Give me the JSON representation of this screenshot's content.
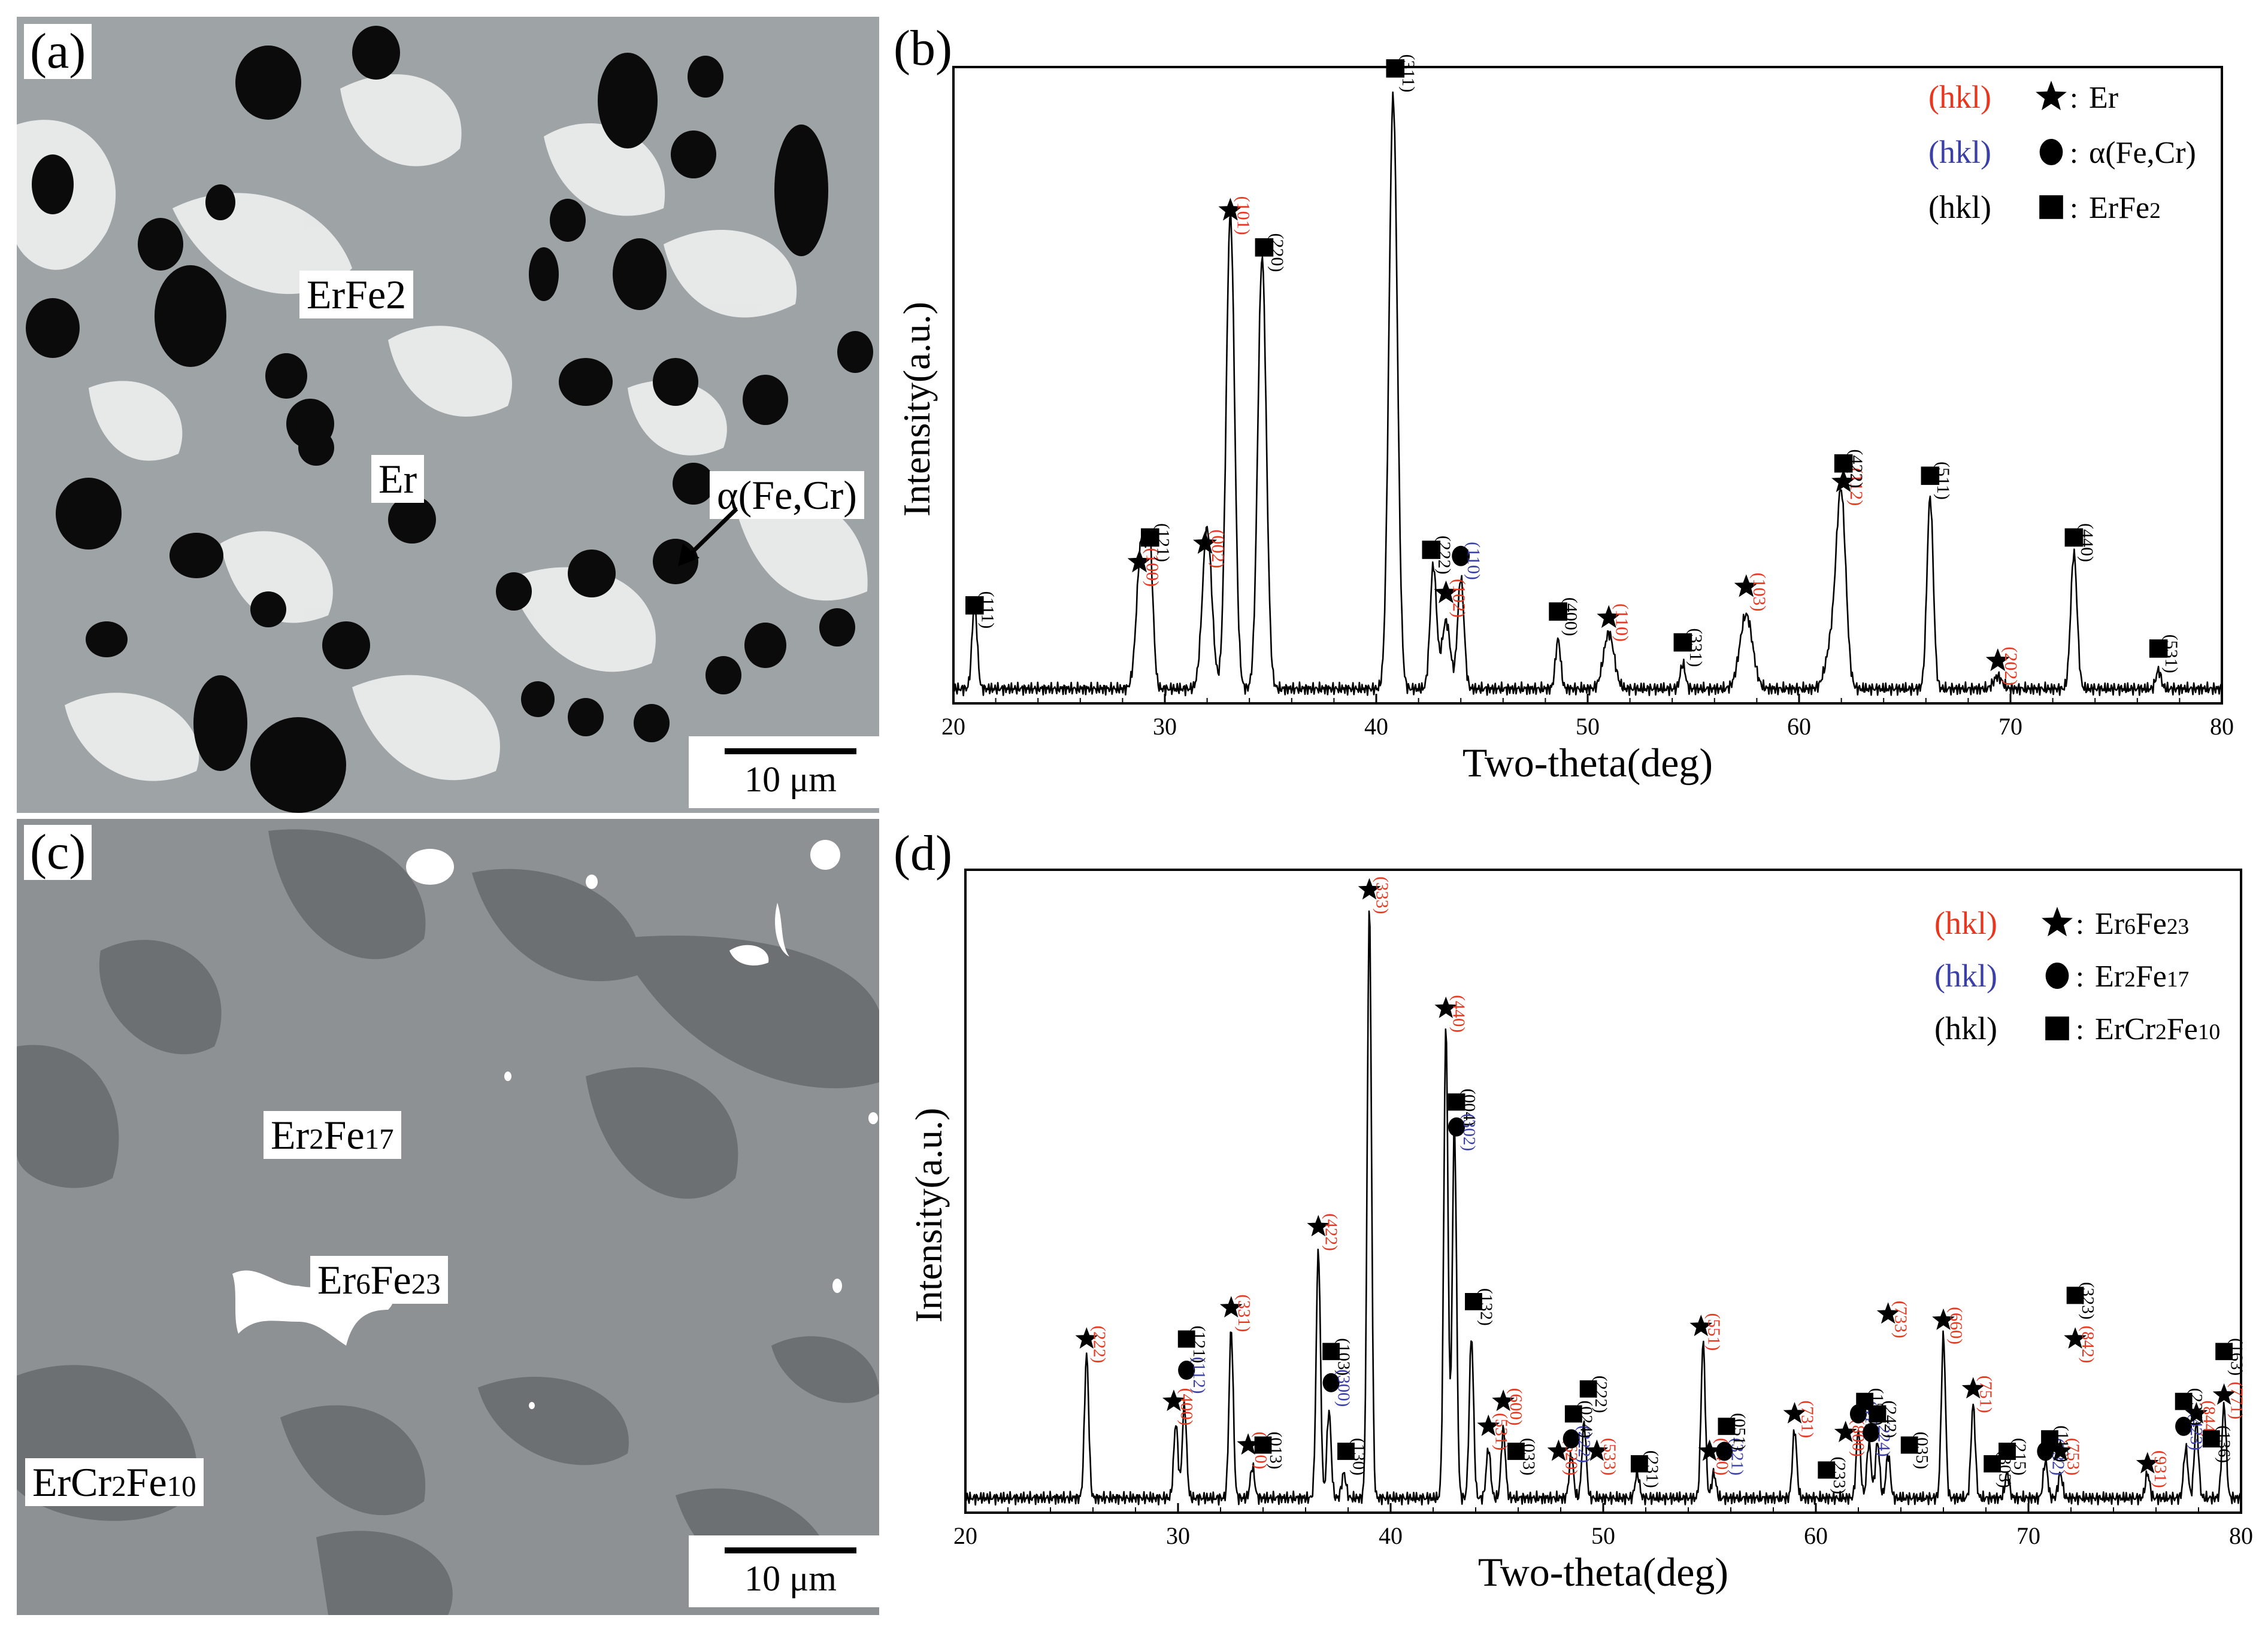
{
  "panels": {
    "a": {
      "label": "(a)",
      "phases": {
        "erfe2": "ErFe2",
        "er": "Er",
        "alpha": "α(Fe,Cr)"
      },
      "scale": "10 μm"
    },
    "c": {
      "label": "(c)",
      "phases": {
        "er2fe17": "Er2Fe17",
        "er6fe23": "Er6Fe23",
        "ercr2fe10": "ErCr2Fe10"
      },
      "scale": "10 μm"
    }
  },
  "colors": {
    "red_label": "#e8361f",
    "blue_label": "#3b3fa8",
    "black_label": "#000000",
    "micro_a_matrix": "#9ea3a6",
    "micro_a_white": "#eef0f0",
    "micro_c_matrix": "#8d9193",
    "micro_c_dark": "#6c7072"
  },
  "chart_data": [
    {
      "panel_label": "(b)",
      "type": "line",
      "xlabel": "Two-theta(deg)",
      "ylabel": "Intensity(a.u.)",
      "xlim": [
        20,
        80
      ],
      "ylim": [
        0,
        100
      ],
      "xticks": [
        20,
        30,
        40,
        50,
        60,
        70,
        80
      ],
      "legend": {
        "placement": "top-right",
        "entries": [
          {
            "hkl": "(hkl)",
            "color": "red",
            "marker": "star",
            "phase": "Er"
          },
          {
            "hkl": "(hkl)",
            "color": "blue",
            "marker": "circle",
            "phase": "α(Fe,Cr)"
          },
          {
            "hkl": "(hkl)",
            "color": "black",
            "marker": "square",
            "phase": "ErFe2"
          }
        ]
      },
      "peaks": [
        {
          "x": 21.0,
          "y": 14,
          "w": 0.12
        },
        {
          "x": 28.9,
          "y": 24,
          "w": 0.22
        },
        {
          "x": 29.3,
          "y": 20,
          "w": 0.15
        },
        {
          "x": 32.0,
          "y": 26,
          "w": 0.22
        },
        {
          "x": 33.1,
          "y": 77,
          "w": 0.2
        },
        {
          "x": 34.6,
          "y": 70,
          "w": 0.2
        },
        {
          "x": 40.8,
          "y": 96,
          "w": 0.2
        },
        {
          "x": 42.7,
          "y": 20,
          "w": 0.15
        },
        {
          "x": 43.3,
          "y": 11,
          "w": 0.2
        },
        {
          "x": 44.0,
          "y": 18,
          "w": 0.15
        },
        {
          "x": 48.6,
          "y": 8,
          "w": 0.12
        },
        {
          "x": 51.0,
          "y": 9,
          "w": 0.25
        },
        {
          "x": 54.5,
          "y": 4,
          "w": 0.12
        },
        {
          "x": 57.5,
          "y": 12,
          "w": 0.3
        },
        {
          "x": 62.0,
          "y": 29,
          "w": 0.22
        },
        {
          "x": 61.6,
          "y": 8,
          "w": 0.3
        },
        {
          "x": 66.2,
          "y": 31,
          "w": 0.15
        },
        {
          "x": 69.4,
          "y": 2,
          "w": 0.2
        },
        {
          "x": 73.0,
          "y": 22,
          "w": 0.15
        },
        {
          "x": 77.0,
          "y": 3,
          "w": 0.12
        }
      ],
      "annotations": [
        {
          "x": 21.0,
          "y": 12,
          "m": "square",
          "label": "(111)",
          "c": "black"
        },
        {
          "x": 28.8,
          "y": 19,
          "m": "star",
          "label": "(100)",
          "c": "red"
        },
        {
          "x": 29.3,
          "y": 23,
          "m": "square",
          "label": "(121)",
          "c": "black"
        },
        {
          "x": 31.9,
          "y": 22,
          "m": "star",
          "label": "(002)",
          "c": "red"
        },
        {
          "x": 33.1,
          "y": 76,
          "m": "star",
          "label": "(101)",
          "c": "red"
        },
        {
          "x": 34.7,
          "y": 70,
          "m": "square",
          "label": "(220)",
          "c": "black"
        },
        {
          "x": 40.9,
          "y": 99,
          "m": "square",
          "label": "(311)",
          "c": "black"
        },
        {
          "x": 42.6,
          "y": 21,
          "m": "square",
          "label": "(222)",
          "c": "black"
        },
        {
          "x": 43.3,
          "y": 14,
          "m": "star",
          "label": "(102)",
          "c": "red"
        },
        {
          "x": 44.0,
          "y": 20,
          "m": "circle",
          "label": "(110)",
          "c": "blue"
        },
        {
          "x": 48.6,
          "y": 11,
          "m": "square",
          "label": "(400)",
          "c": "black"
        },
        {
          "x": 51.0,
          "y": 10,
          "m": "star",
          "label": "(110)",
          "c": "red"
        },
        {
          "x": 54.5,
          "y": 6,
          "m": "square",
          "label": "(331)",
          "c": "black"
        },
        {
          "x": 57.5,
          "y": 15,
          "m": "star",
          "label": "(103)",
          "c": "red"
        },
        {
          "x": 62.1,
          "y": 32,
          "m": "star",
          "label": "(112)",
          "c": "red"
        },
        {
          "x": 62.1,
          "y": 35,
          "m": "square",
          "label": "(422)",
          "c": "black"
        },
        {
          "x": 66.2,
          "y": 33,
          "m": "square",
          "label": "(511)",
          "c": "black"
        },
        {
          "x": 69.4,
          "y": 3,
          "m": "star",
          "label": "(202)",
          "c": "red"
        },
        {
          "x": 73.0,
          "y": 23,
          "m": "square",
          "label": "(440)",
          "c": "black"
        },
        {
          "x": 77.0,
          "y": 5,
          "m": "square",
          "label": "(531)",
          "c": "black"
        }
      ]
    },
    {
      "panel_label": "(d)",
      "type": "line",
      "xlabel": "Two-theta(deg)",
      "ylabel": "Intensity(a.u.)",
      "xlim": [
        20,
        80
      ],
      "ylim": [
        0,
        100
      ],
      "xticks": [
        20,
        30,
        40,
        50,
        60,
        70,
        80
      ],
      "legend": {
        "placement": "top-right",
        "entries": [
          {
            "hkl": "(hkl)",
            "color": "red",
            "marker": "star",
            "phase": "Er6Fe23"
          },
          {
            "hkl": "(hkl)",
            "color": "blue",
            "marker": "circle",
            "phase": "Er2Fe17"
          },
          {
            "hkl": "(hkl)",
            "color": "black",
            "marker": "square",
            "phase": "ErCr2Fe10"
          }
        ]
      },
      "peaks": [
        {
          "x": 25.7,
          "y": 23,
          "w": 0.1
        },
        {
          "x": 29.9,
          "y": 12,
          "w": 0.1
        },
        {
          "x": 30.3,
          "y": 15,
          "w": 0.1
        },
        {
          "x": 32.5,
          "y": 27,
          "w": 0.1
        },
        {
          "x": 33.5,
          "y": 5,
          "w": 0.1
        },
        {
          "x": 36.6,
          "y": 40,
          "w": 0.1
        },
        {
          "x": 37.1,
          "y": 14,
          "w": 0.1
        },
        {
          "x": 37.8,
          "y": 4,
          "w": 0.1
        },
        {
          "x": 39.0,
          "y": 95,
          "w": 0.1
        },
        {
          "x": 42.6,
          "y": 76,
          "w": 0.1
        },
        {
          "x": 43.0,
          "y": 60,
          "w": 0.1
        },
        {
          "x": 43.8,
          "y": 26,
          "w": 0.1
        },
        {
          "x": 44.6,
          "y": 8,
          "w": 0.1
        },
        {
          "x": 45.3,
          "y": 11,
          "w": 0.1
        },
        {
          "x": 48.5,
          "y": 7,
          "w": 0.1
        },
        {
          "x": 49.1,
          "y": 12,
          "w": 0.1
        },
        {
          "x": 51.6,
          "y": 4,
          "w": 0.1
        },
        {
          "x": 54.7,
          "y": 25,
          "w": 0.1
        },
        {
          "x": 55.2,
          "y": 4,
          "w": 0.1
        },
        {
          "x": 59.0,
          "y": 11,
          "w": 0.1
        },
        {
          "x": 62.0,
          "y": 11,
          "w": 0.1
        },
        {
          "x": 62.5,
          "y": 9,
          "w": 0.1
        },
        {
          "x": 62.9,
          "y": 9,
          "w": 0.1
        },
        {
          "x": 63.4,
          "y": 7,
          "w": 0.1
        },
        {
          "x": 66.0,
          "y": 26,
          "w": 0.1
        },
        {
          "x": 67.4,
          "y": 15,
          "w": 0.1
        },
        {
          "x": 69.0,
          "y": 4,
          "w": 0.1
        },
        {
          "x": 70.8,
          "y": 6,
          "w": 0.1
        },
        {
          "x": 71.5,
          "y": 4,
          "w": 0.1
        },
        {
          "x": 75.6,
          "y": 4,
          "w": 0.1
        },
        {
          "x": 77.4,
          "y": 8,
          "w": 0.1
        },
        {
          "x": 77.9,
          "y": 12,
          "w": 0.1
        },
        {
          "x": 79.2,
          "y": 15,
          "w": 0.1
        }
      ],
      "annotations": [
        {
          "x": 25.7,
          "y": 24,
          "m": "star",
          "label": "(222)",
          "c": "red"
        },
        {
          "x": 29.8,
          "y": 14,
          "m": "star",
          "label": "(400)",
          "c": "red"
        },
        {
          "x": 30.4,
          "y": 24,
          "m": "square",
          "label": "(121)",
          "c": "black"
        },
        {
          "x": 30.4,
          "y": 19,
          "m": "circle",
          "label": "(112)",
          "c": "blue"
        },
        {
          "x": 32.5,
          "y": 29,
          "m": "star",
          "label": "(331)",
          "c": "red"
        },
        {
          "x": 33.3,
          "y": 7,
          "m": "star",
          "label": "(420)",
          "c": "red"
        },
        {
          "x": 34.0,
          "y": 7,
          "m": "square",
          "label": "(013)",
          "c": "black"
        },
        {
          "x": 36.6,
          "y": 42,
          "m": "star",
          "label": "(422)",
          "c": "red"
        },
        {
          "x": 37.2,
          "y": 22,
          "m": "square",
          "label": "(103)",
          "c": "black"
        },
        {
          "x": 37.2,
          "y": 17,
          "m": "circle",
          "label": "(300)",
          "c": "blue"
        },
        {
          "x": 37.9,
          "y": 6,
          "m": "square",
          "label": "(130)",
          "c": "black"
        },
        {
          "x": 39.0,
          "y": 96,
          "m": "star",
          "label": "(333)",
          "c": "red"
        },
        {
          "x": 42.6,
          "y": 77,
          "m": "star",
          "label": "(440)",
          "c": "red"
        },
        {
          "x": 43.1,
          "y": 62,
          "m": "square",
          "label": "(004)",
          "c": "black"
        },
        {
          "x": 43.1,
          "y": 58,
          "m": "circle",
          "label": "(302)",
          "c": "blue"
        },
        {
          "x": 43.9,
          "y": 30,
          "m": "square",
          "label": "(132)",
          "c": "black"
        },
        {
          "x": 44.6,
          "y": 10,
          "m": "star",
          "label": "(531)",
          "c": "red"
        },
        {
          "x": 45.3,
          "y": 14,
          "m": "star",
          "label": "(600)",
          "c": "red"
        },
        {
          "x": 45.9,
          "y": 6,
          "m": "square",
          "label": "(033)",
          "c": "black"
        },
        {
          "x": 47.9,
          "y": 6,
          "m": "star",
          "label": "(620)",
          "c": "red"
        },
        {
          "x": 48.5,
          "y": 8,
          "m": "circle",
          "label": "(222)",
          "c": "blue"
        },
        {
          "x": 48.6,
          "y": 12,
          "m": "square",
          "label": "(024)",
          "c": "black"
        },
        {
          "x": 49.3,
          "y": 16,
          "m": "square",
          "label": "(222)",
          "c": "black"
        },
        {
          "x": 49.7,
          "y": 6,
          "m": "star",
          "label": "(533)",
          "c": "red"
        },
        {
          "x": 51.7,
          "y": 4,
          "m": "square",
          "label": "(231)",
          "c": "black"
        },
        {
          "x": 54.6,
          "y": 26,
          "m": "star",
          "label": "(551)",
          "c": "red"
        },
        {
          "x": 55.0,
          "y": 6,
          "m": "star",
          "label": "(640)",
          "c": "red"
        },
        {
          "x": 55.7,
          "y": 6,
          "m": "circle",
          "label": "(321)",
          "c": "blue"
        },
        {
          "x": 55.8,
          "y": 10,
          "m": "square",
          "label": "(051)",
          "c": "black"
        },
        {
          "x": 59.0,
          "y": 12,
          "m": "star",
          "label": "(731)",
          "c": "red"
        },
        {
          "x": 60.5,
          "y": 3,
          "m": "square",
          "label": "(233)",
          "c": "black"
        },
        {
          "x": 61.4,
          "y": 9,
          "m": "star",
          "label": "(800)",
          "c": "red"
        },
        {
          "x": 62.0,
          "y": 12,
          "m": "circle",
          "label": "(412)",
          "c": "blue"
        },
        {
          "x": 62.3,
          "y": 14,
          "m": "square",
          "label": "(152)",
          "c": "black"
        },
        {
          "x": 62.6,
          "y": 9,
          "m": "circle",
          "label": "(224)",
          "c": "blue"
        },
        {
          "x": 62.9,
          "y": 12,
          "m": "square",
          "label": "(242)",
          "c": "black"
        },
        {
          "x": 63.4,
          "y": 28,
          "m": "star",
          "label": "(733)",
          "c": "red"
        },
        {
          "x": 64.4,
          "y": 7,
          "m": "square",
          "label": "(035)",
          "c": "black"
        },
        {
          "x": 66.0,
          "y": 27,
          "m": "star",
          "label": "(660)",
          "c": "red"
        },
        {
          "x": 67.4,
          "y": 16,
          "m": "star",
          "label": "(751)",
          "c": "red"
        },
        {
          "x": 68.3,
          "y": 4,
          "m": "square",
          "label": "(303)",
          "c": "black"
        },
        {
          "x": 69.0,
          "y": 6,
          "m": "square",
          "label": "(215)",
          "c": "black"
        },
        {
          "x": 70.8,
          "y": 6,
          "m": "circle",
          "label": "(332)",
          "c": "blue"
        },
        {
          "x": 71.0,
          "y": 8,
          "m": "square",
          "label": "(116)",
          "c": "black"
        },
        {
          "x": 71.5,
          "y": 6,
          "m": "star",
          "label": "(753)",
          "c": "red"
        },
        {
          "x": 72.2,
          "y": 31,
          "m": "square",
          "label": "(323)",
          "c": "black"
        },
        {
          "x": 72.2,
          "y": 24,
          "m": "star",
          "label": "(842)",
          "c": "red"
        },
        {
          "x": 75.6,
          "y": 4,
          "m": "star",
          "label": "(931)",
          "c": "red"
        },
        {
          "x": 77.3,
          "y": 10,
          "m": "circle",
          "label": "(423)",
          "c": "blue"
        },
        {
          "x": 77.3,
          "y": 14,
          "m": "square",
          "label": "(235)",
          "c": "black"
        },
        {
          "x": 77.9,
          "y": 12,
          "m": "star",
          "label": "(844)",
          "c": "red"
        },
        {
          "x": 78.6,
          "y": 8,
          "m": "square",
          "label": "(136)",
          "c": "black"
        },
        {
          "x": 79.2,
          "y": 15,
          "m": "star",
          "label": "(771)",
          "c": "red"
        },
        {
          "x": 79.2,
          "y": 22,
          "m": "square",
          "label": "(163)",
          "c": "black"
        }
      ]
    }
  ]
}
